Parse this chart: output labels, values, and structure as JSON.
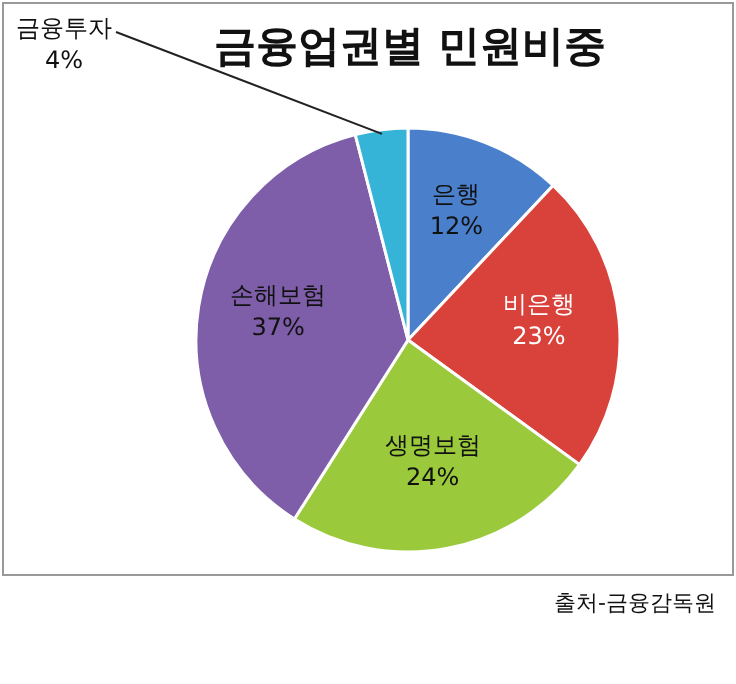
{
  "chart_data": {
    "type": "pie",
    "title": "금융업권별 민원비중",
    "categories": [
      "은행",
      "비은행",
      "생명보험",
      "손해보험",
      "금융투자"
    ],
    "values": [
      12,
      23,
      24,
      37,
      4
    ],
    "colors": [
      "#4a7fcb",
      "#d9413b",
      "#9bc93c",
      "#7e5ea8",
      "#35b4d8"
    ],
    "value_labels": [
      "12%",
      "23%",
      "24%",
      "37%",
      "4%"
    ],
    "annotations": [
      "출처-금융감독원"
    ]
  }
}
